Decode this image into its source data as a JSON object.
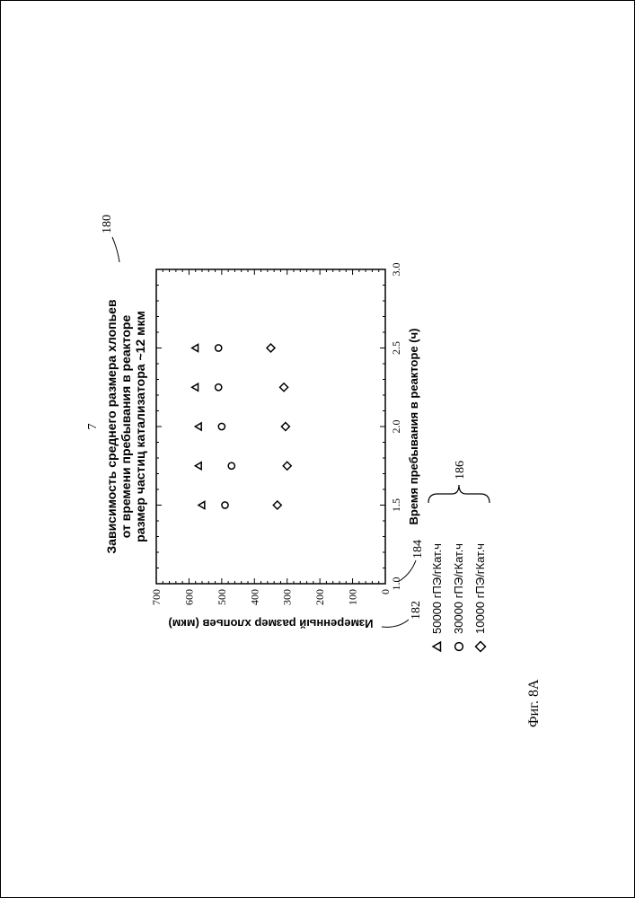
{
  "page_number": "7",
  "chart": {
    "type": "scatter",
    "title_lines": [
      "Зависимость среднего размера хлопьев",
      "от времени пребывания в реакторе",
      "размер частиц катализатора ~12 мкм"
    ],
    "xlabel": "Время пребывания в реакторе (ч)",
    "ylabel": "Измеренный размер хлопьев (мкм)",
    "xlim": [
      1.0,
      3.0
    ],
    "ylim": [
      0,
      700
    ],
    "xticks": [
      1.0,
      1.5,
      2.0,
      2.5,
      3.0
    ],
    "yticks": [
      0,
      100,
      200,
      300,
      400,
      500,
      600,
      700
    ],
    "x_minor_step": 0.1,
    "y_minor_step": 20,
    "background_color": "#ffffff",
    "axis_color": "#000000",
    "tick_fontsize": 12,
    "label_fontsize": 13,
    "title_fontsize": 14,
    "marker_size": 9,
    "marker_stroke": "#000000",
    "marker_stroke_width": 1.5,
    "series": [
      {
        "label": "50000 гПЭ/гКат.ч",
        "marker": "triangle",
        "x": [
          1.5,
          1.75,
          2.0,
          2.25,
          2.5
        ],
        "y": [
          560,
          570,
          570,
          580,
          580
        ]
      },
      {
        "label": "30000 гПЭ/гКат.ч",
        "marker": "circle",
        "x": [
          1.5,
          1.75,
          2.0,
          2.25,
          2.5
        ],
        "y": [
          490,
          470,
          500,
          510,
          510
        ]
      },
      {
        "label": "10000 гПЭ/гКат.ч",
        "marker": "diamond",
        "x": [
          1.5,
          1.75,
          2.0,
          2.25,
          2.5
        ],
        "y": [
          330,
          300,
          305,
          310,
          350
        ]
      }
    ],
    "callouts": {
      "title_num": "180",
      "ylabel_num": "182",
      "xlabel_num": "184",
      "legend_num": "186"
    },
    "caption": "Фиг. 8A"
  }
}
